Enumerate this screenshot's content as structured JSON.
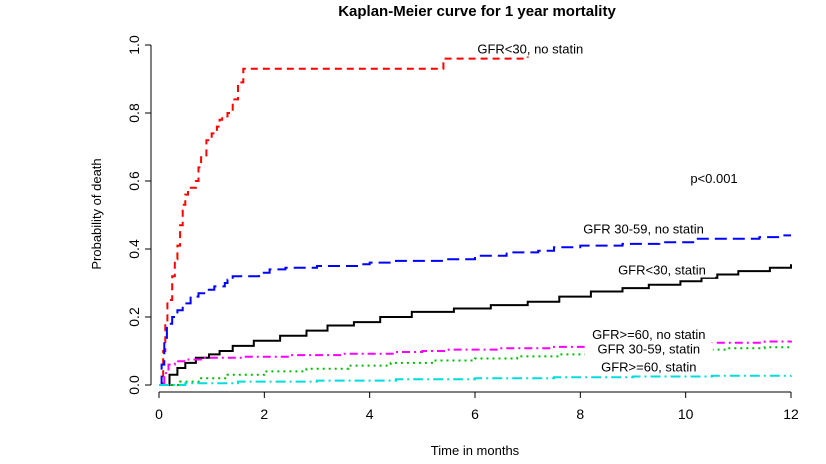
{
  "chart_data": {
    "type": "line",
    "title": "Kaplan-Meier curve for 1 year mortality",
    "xlabel": "Time in months",
    "ylabel": "Probability of death",
    "xlim": [
      0,
      12
    ],
    "ylim": [
      0,
      1
    ],
    "x_ticks": [
      "0",
      "2",
      "4",
      "6",
      "8",
      "10",
      "12"
    ],
    "y_ticks": [
      "0.0",
      "0.2",
      "0.4",
      "0.6",
      "0.8",
      "1.0"
    ],
    "grid": false,
    "annotation": "p<0.001",
    "series": [
      {
        "name": "GFR<30, no statin",
        "color": "#ff0000",
        "dash": "dashed",
        "label_at": [
          7.05,
          0.975
        ],
        "points": [
          [
            0,
            0
          ],
          [
            0.08,
            0.1
          ],
          [
            0.12,
            0.18
          ],
          [
            0.16,
            0.25
          ],
          [
            0.25,
            0.32
          ],
          [
            0.3,
            0.37
          ],
          [
            0.35,
            0.41
          ],
          [
            0.4,
            0.47
          ],
          [
            0.45,
            0.53
          ],
          [
            0.5,
            0.56
          ],
          [
            0.55,
            0.58
          ],
          [
            0.7,
            0.6
          ],
          [
            0.75,
            0.64
          ],
          [
            0.8,
            0.67
          ],
          [
            0.9,
            0.72
          ],
          [
            1.0,
            0.74
          ],
          [
            1.1,
            0.76
          ],
          [
            1.15,
            0.78
          ],
          [
            1.2,
            0.79
          ],
          [
            1.3,
            0.8
          ],
          [
            1.4,
            0.84
          ],
          [
            1.5,
            0.89
          ],
          [
            1.6,
            0.93
          ],
          [
            5.4,
            0.96
          ],
          [
            7.0,
            0.99
          ],
          [
            7.5,
            0.99
          ]
        ]
      },
      {
        "name": "GFR 30-59, no statin",
        "color": "#0000ff",
        "dash": "longdash",
        "label_at": [
          9.2,
          0.445
        ],
        "points": [
          [
            0,
            0
          ],
          [
            0.05,
            0.06
          ],
          [
            0.1,
            0.13
          ],
          [
            0.15,
            0.18
          ],
          [
            0.25,
            0.2
          ],
          [
            0.35,
            0.22
          ],
          [
            0.45,
            0.24
          ],
          [
            0.6,
            0.26
          ],
          [
            0.75,
            0.27
          ],
          [
            0.9,
            0.28
          ],
          [
            1.05,
            0.29
          ],
          [
            1.25,
            0.3
          ],
          [
            1.3,
            0.31
          ],
          [
            1.4,
            0.32
          ],
          [
            1.9,
            0.33
          ],
          [
            2.1,
            0.34
          ],
          [
            2.4,
            0.345
          ],
          [
            3.0,
            0.35
          ],
          [
            3.8,
            0.355
          ],
          [
            4.0,
            0.36
          ],
          [
            4.5,
            0.365
          ],
          [
            5.4,
            0.37
          ],
          [
            6.0,
            0.38
          ],
          [
            6.6,
            0.39
          ],
          [
            7.2,
            0.395
          ],
          [
            7.5,
            0.405
          ],
          [
            8.0,
            0.41
          ],
          [
            8.8,
            0.415
          ],
          [
            9.5,
            0.42
          ],
          [
            10.2,
            0.43
          ],
          [
            11.4,
            0.435
          ],
          [
            11.8,
            0.44
          ],
          [
            12.0,
            0.44
          ]
        ]
      },
      {
        "name": "GFR<30, statin",
        "color": "#000000",
        "dash": "solid",
        "label_at": [
          9.55,
          0.325
        ],
        "points": [
          [
            0,
            0
          ],
          [
            0.2,
            0.03
          ],
          [
            0.35,
            0.05
          ],
          [
            0.5,
            0.065
          ],
          [
            0.7,
            0.08
          ],
          [
            0.95,
            0.09
          ],
          [
            1.15,
            0.1
          ],
          [
            1.4,
            0.115
          ],
          [
            1.8,
            0.13
          ],
          [
            2.3,
            0.145
          ],
          [
            2.8,
            0.16
          ],
          [
            3.2,
            0.175
          ],
          [
            3.7,
            0.185
          ],
          [
            4.2,
            0.2
          ],
          [
            4.8,
            0.215
          ],
          [
            5.6,
            0.225
          ],
          [
            6.3,
            0.235
          ],
          [
            7.0,
            0.245
          ],
          [
            7.6,
            0.26
          ],
          [
            8.2,
            0.275
          ],
          [
            8.8,
            0.285
          ],
          [
            9.3,
            0.295
          ],
          [
            9.9,
            0.305
          ],
          [
            10.3,
            0.315
          ],
          [
            10.6,
            0.325
          ],
          [
            11.0,
            0.335
          ],
          [
            11.6,
            0.345
          ],
          [
            12.0,
            0.355
          ]
        ]
      },
      {
        "name": "GFR>=60, no statin",
        "color": "#ff00ff",
        "dash": "dotdash",
        "label_at": [
          9.3,
          0.135
        ],
        "points": [
          [
            0,
            0
          ],
          [
            0.1,
            0.035
          ],
          [
            0.18,
            0.06
          ],
          [
            0.3,
            0.07
          ],
          [
            0.5,
            0.075
          ],
          [
            0.8,
            0.08
          ],
          [
            1.6,
            0.083
          ],
          [
            2.5,
            0.088
          ],
          [
            3.5,
            0.092
          ],
          [
            4.5,
            0.097
          ],
          [
            5.0,
            0.1
          ],
          [
            5.5,
            0.104
          ],
          [
            6.5,
            0.108
          ],
          [
            7.5,
            0.112
          ],
          [
            8.5,
            0.116
          ],
          [
            9.5,
            0.12
          ],
          [
            10.5,
            0.124
          ],
          [
            11.5,
            0.128
          ],
          [
            12.0,
            0.13
          ]
        ]
      },
      {
        "name": "GFR 30-59, statin",
        "color": "#00bb00",
        "dash": "dotted",
        "label_at": [
          9.3,
          0.093
        ],
        "points": [
          [
            0,
            0
          ],
          [
            0.4,
            0.01
          ],
          [
            0.8,
            0.02
          ],
          [
            1.3,
            0.03
          ],
          [
            2.0,
            0.04
          ],
          [
            2.8,
            0.048
          ],
          [
            3.6,
            0.057
          ],
          [
            4.4,
            0.065
          ],
          [
            5.2,
            0.072
          ],
          [
            6.0,
            0.078
          ],
          [
            6.8,
            0.084
          ],
          [
            7.6,
            0.09
          ],
          [
            8.4,
            0.095
          ],
          [
            9.2,
            0.1
          ],
          [
            10.0,
            0.104
          ],
          [
            10.8,
            0.108
          ],
          [
            11.5,
            0.111
          ],
          [
            12.0,
            0.113
          ]
        ]
      },
      {
        "name": "GFR>=60, statin",
        "color": "#00dddd",
        "dash": "dashdot",
        "label_at": [
          9.3,
          0.04
        ],
        "points": [
          [
            0,
            0
          ],
          [
            0.5,
            0.005
          ],
          [
            1.5,
            0.01
          ],
          [
            3.0,
            0.013
          ],
          [
            4.5,
            0.017
          ],
          [
            6.0,
            0.02
          ],
          [
            7.5,
            0.023
          ],
          [
            9.0,
            0.025
          ],
          [
            10.5,
            0.027
          ],
          [
            12.0,
            0.028
          ]
        ]
      }
    ]
  }
}
